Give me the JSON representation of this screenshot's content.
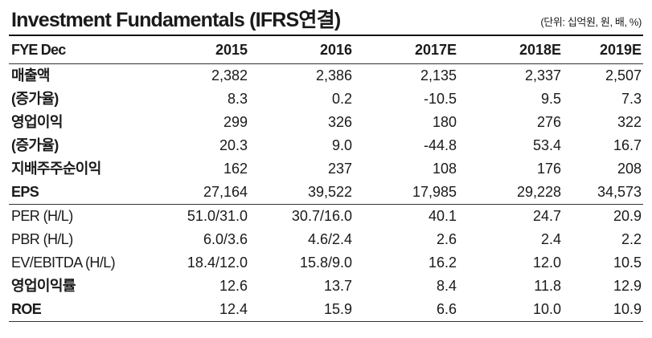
{
  "title": "Investment Fundamentals (IFRS연결)",
  "unit_note": "(단위: 십억원, 원, 배, %)",
  "header": {
    "label": "FYE Dec",
    "years": [
      "2015",
      "2016",
      "2017E",
      "2018E",
      "2019E"
    ]
  },
  "rows": [
    {
      "label": "매출액",
      "values": [
        "2,382",
        "2,386",
        "2,135",
        "2,337",
        "2,507"
      ]
    },
    {
      "label": "(증가율)",
      "values": [
        "8.3",
        "0.2",
        "-10.5",
        "9.5",
        "7.3"
      ]
    },
    {
      "label": "영업이익",
      "values": [
        "299",
        "326",
        "180",
        "276",
        "322"
      ]
    },
    {
      "label": "(증가율)",
      "values": [
        "20.3",
        "9.0",
        "-44.8",
        "53.4",
        "16.7"
      ]
    },
    {
      "label": "지배주주순이익",
      "values": [
        "162",
        "237",
        "108",
        "176",
        "208"
      ]
    },
    {
      "label": "EPS",
      "values": [
        "27,164",
        "39,522",
        "17,985",
        "29,228",
        "34,573"
      ]
    },
    {
      "label": "PER (H/L)",
      "values": [
        "51.0/31.0",
        "30.7/16.0",
        "40.1",
        "24.7",
        "20.9"
      ]
    },
    {
      "label": "PBR (H/L)",
      "values": [
        "6.0/3.6",
        "4.6/2.4",
        "2.6",
        "2.4",
        "2.2"
      ]
    },
    {
      "label": "EV/EBITDA (H/L)",
      "values": [
        "18.4/12.0",
        "15.8/9.0",
        "16.2",
        "12.0",
        "10.5"
      ]
    },
    {
      "label": "영업이익률",
      "values": [
        "12.6",
        "13.7",
        "8.4",
        "11.8",
        "12.9"
      ]
    },
    {
      "label": "ROE",
      "values": [
        "12.4",
        "15.9",
        "6.6",
        "10.0",
        "10.9"
      ]
    }
  ]
}
